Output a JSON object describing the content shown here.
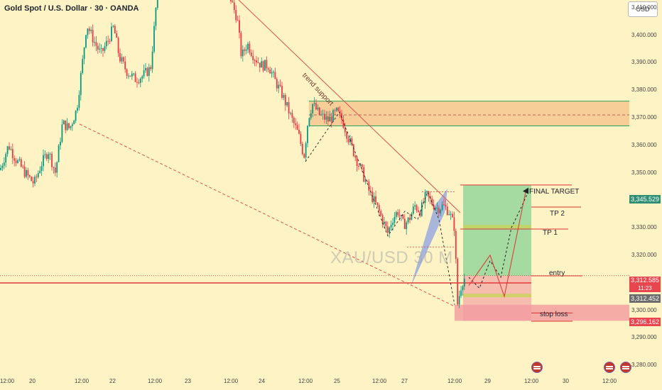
{
  "header": {
    "title": "Gold Spot / U.S. Dollar · 30 · OANDA",
    "currency": "USD"
  },
  "watermark": "XAU/USD 30 M",
  "price_scale": {
    "ticks": [
      "3,410.000",
      "3,400.000",
      "3,390.000",
      "3,380.000",
      "3,370.000",
      "3,360.000",
      "3,350.000",
      "3,340.000",
      "3,330.000",
      "3,320.000",
      "3,310.000",
      "3,300.000",
      "3,290.000",
      "3,280.000"
    ]
  },
  "time_scale": {
    "labels": [
      "12:00",
      "20",
      "12:00",
      "22",
      "12:00",
      "23",
      "12:00",
      "24",
      "12:00",
      "25",
      "12:00",
      "27",
      "12:00",
      "29",
      "12:00",
      "30",
      "12:00"
    ]
  },
  "price_tags": {
    "final_target": {
      "value": "3,345.529",
      "color": "#2e8f72"
    },
    "current_price": {
      "value": "3,312.585",
      "countdown": "11:23",
      "color": "#e8454f"
    },
    "crosshair": {
      "value": "3,312.452",
      "color": "#6b6b6b"
    },
    "stop_loss": {
      "value": "3,296.162",
      "color": "#e8454f"
    }
  },
  "annotations": {
    "final_target": "FINAL TARGET",
    "tp2": "TP 2",
    "tp1": "TP 1",
    "entry": "entry",
    "stop_loss": "stop loss",
    "trend": "trend support"
  },
  "chart_data": {
    "type": "candlestick",
    "title": "Gold Spot / U.S. Dollar · 30 · OANDA",
    "instrument": "XAU/USD",
    "timeframe": "30",
    "ylim": [
      3276,
      3420
    ],
    "grid": false,
    "colors": {
      "up": "#089981",
      "down": "#f23645",
      "background": "#fdf3c4",
      "target_zone": "#7fd091",
      "stop_zone": "#f29aa0",
      "resistance_zone": "#f5c289"
    },
    "levels": {
      "final_target": 3345.529,
      "tp2": 3337.5,
      "tp1": 3329.5,
      "entry": 3312.5,
      "stop_loss": 3296.162,
      "current_price": 3312.585
    },
    "resistance_zone": [
      3367,
      3376
    ],
    "price_path": [
      [
        0,
        3351
      ],
      [
        12,
        3360
      ],
      [
        22,
        3355
      ],
      [
        35,
        3350
      ],
      [
        48,
        3346
      ],
      [
        58,
        3353
      ],
      [
        68,
        3358
      ],
      [
        78,
        3350
      ],
      [
        88,
        3368
      ],
      [
        98,
        3366
      ],
      [
        108,
        3373
      ],
      [
        116,
        3390
      ],
      [
        122,
        3404
      ],
      [
        132,
        3398
      ],
      [
        142,
        3393
      ],
      [
        152,
        3398
      ],
      [
        160,
        3403
      ],
      [
        168,
        3392
      ],
      [
        178,
        3387
      ],
      [
        190,
        3384
      ],
      [
        200,
        3385
      ],
      [
        212,
        3388
      ],
      [
        218,
        3405
      ],
      [
        222,
        3418
      ],
      [
        228,
        3422
      ],
      [
        240,
        3423
      ],
      [
        256,
        3422
      ],
      [
        270,
        3421
      ],
      [
        282,
        3421
      ],
      [
        296,
        3420
      ],
      [
        308,
        3418
      ],
      [
        318,
        3421
      ],
      [
        326,
        3412
      ],
      [
        334,
        3406
      ],
      [
        340,
        3392
      ],
      [
        348,
        3397
      ],
      [
        358,
        3392
      ],
      [
        368,
        3389
      ],
      [
        378,
        3389
      ],
      [
        388,
        3383
      ],
      [
        398,
        3378
      ],
      [
        410,
        3370
      ],
      [
        420,
        3364
      ],
      [
        428,
        3356
      ],
      [
        434,
        3370
      ],
      [
        440,
        3375
      ],
      [
        450,
        3371
      ],
      [
        462,
        3369
      ],
      [
        474,
        3372
      ],
      [
        482,
        3369
      ],
      [
        490,
        3363
      ],
      [
        500,
        3356
      ],
      [
        510,
        3350
      ],
      [
        520,
        3343
      ],
      [
        530,
        3338
      ],
      [
        540,
        3332
      ],
      [
        546,
        3328
      ],
      [
        552,
        3333
      ],
      [
        560,
        3336
      ],
      [
        568,
        3331
      ],
      [
        576,
        3333
      ],
      [
        584,
        3338
      ],
      [
        592,
        3336
      ],
      [
        600,
        3342
      ],
      [
        608,
        3339
      ],
      [
        616,
        3337
      ],
      [
        624,
        3338
      ],
      [
        632,
        3336
      ],
      [
        640,
        3330
      ],
      [
        644,
        3302
      ],
      [
        650,
        3310
      ],
      [
        656,
        3312.5
      ]
    ],
    "projection_path": [
      [
        660,
        3312
      ],
      [
        675,
        3308
      ],
      [
        690,
        3318
      ],
      [
        705,
        3312
      ],
      [
        720,
        3330
      ],
      [
        735,
        3338
      ],
      [
        745,
        3344
      ]
    ]
  }
}
